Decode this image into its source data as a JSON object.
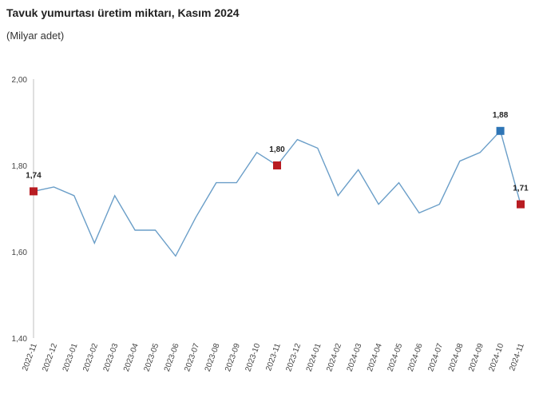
{
  "chart_data": {
    "type": "line",
    "title": "Tavuk yumurtası üretim miktarı, Kasım 2024",
    "subtitle": "(Milyar adet)",
    "ylim": [
      1.4,
      2.0
    ],
    "yticks": [
      "1,40",
      "1,60",
      "1,80",
      "2,00"
    ],
    "ytick_values": [
      1.4,
      1.6,
      1.8,
      2.0
    ],
    "grid": false,
    "x": [
      "2022-11",
      "2022-12",
      "2023-01",
      "2023-02",
      "2023-03",
      "2023-04",
      "2023-05",
      "2023-06",
      "2023-07",
      "2023-08",
      "2023-09",
      "2023-10",
      "2023-11",
      "2023-12",
      "2024-01",
      "2024-02",
      "2024-03",
      "2024-04",
      "2024-05",
      "2024-06",
      "2024-07",
      "2024-08",
      "2024-09",
      "2024-10",
      "2024-11"
    ],
    "series": [
      {
        "values": [
          1.74,
          1.75,
          1.73,
          1.62,
          1.73,
          1.65,
          1.65,
          1.59,
          1.68,
          1.76,
          1.76,
          1.83,
          1.8,
          1.86,
          1.84,
          1.73,
          1.79,
          1.71,
          1.76,
          1.69,
          1.71,
          1.81,
          1.83,
          1.88,
          1.71
        ],
        "color": "#6a9ec8"
      }
    ],
    "highlights": [
      {
        "index": 0,
        "label": "1,74",
        "color": "#b81c22"
      },
      {
        "index": 12,
        "label": "1,80",
        "color": "#b81c22"
      },
      {
        "index": 23,
        "label": "1,88",
        "color": "#2e75b6"
      },
      {
        "index": 24,
        "label": "1,71",
        "color": "#b81c22"
      }
    ]
  }
}
